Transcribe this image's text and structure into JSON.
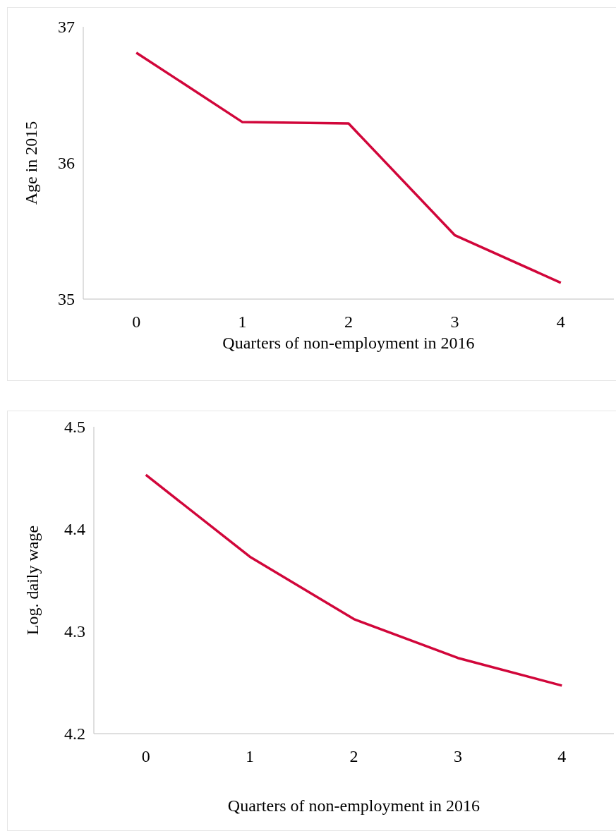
{
  "chart_data": [
    {
      "type": "line",
      "ylabel": "Age in 2015",
      "xlabel": "Quarters of non-employment in 2016",
      "categories": [
        "0",
        "1",
        "2",
        "3",
        "4"
      ],
      "series": [
        {
          "color": "#d1063a",
          "values": [
            36.81,
            36.3,
            36.29,
            35.47,
            35.12
          ]
        }
      ],
      "ylim": [
        35,
        37
      ],
      "yticks": [
        35,
        36,
        37
      ],
      "grid": false,
      "marker": "none",
      "line_style": "solid"
    },
    {
      "type": "line",
      "ylabel": "Log. daily wage",
      "xlabel": "Quarters of non-employment in 2016",
      "categories": [
        "0",
        "1",
        "2",
        "3",
        "4"
      ],
      "series": [
        {
          "color": "#d1063a",
          "values": [
            4.453,
            4.373,
            4.312,
            4.274,
            4.247
          ]
        }
      ],
      "ylim": [
        4.2,
        4.5
      ],
      "yticks": [
        {
          "value": 4.2,
          "label": "4.2"
        },
        {
          "value": 4.3,
          "label": "4.3"
        },
        {
          "value": 4.4,
          "label": "4.4"
        },
        {
          "value": 4.5,
          "label": "4.5"
        }
      ],
      "grid": false,
      "marker": "none",
      "line_style": "solid"
    }
  ]
}
